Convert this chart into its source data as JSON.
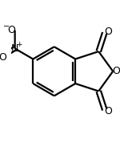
{
  "bg_color": "#ffffff",
  "line_color": "#000000",
  "line_width": 1.6,
  "figsize": [
    1.5,
    1.88
  ],
  "dpi": 100,
  "xlim": [
    0,
    150
  ],
  "ylim": [
    0,
    188
  ]
}
